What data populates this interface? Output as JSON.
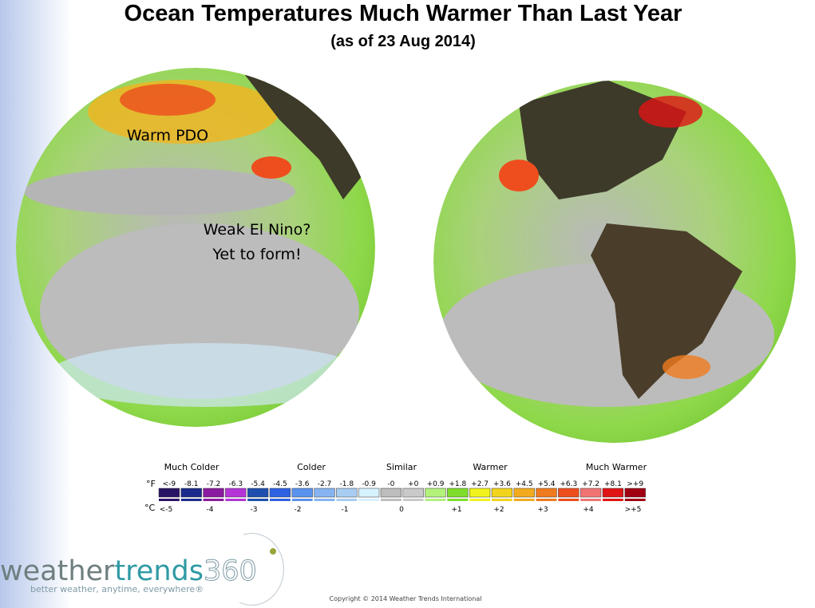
{
  "header": {
    "title": "Ocean Temperatures Much Warmer Than Last Year",
    "subtitle": "(as of 23 Aug 2014)"
  },
  "annotations": [
    "Warm PDO",
    "Weak El Nino?",
    "Yet to form!"
  ],
  "legend": {
    "categories": [
      "Much Colder",
      "Colder",
      "Similar",
      "Warmer",
      "Much Warmer"
    ],
    "f_unit": "°F",
    "c_unit": "°C",
    "f_labels": [
      "<-9",
      "-8.1",
      "-7.2",
      "-6.3",
      "-5.4",
      "-4.5",
      "-3.6",
      "-2.7",
      "-1.8",
      "-0.9",
      "-0",
      "+0",
      "+0.9",
      "+1.8",
      "+2.7",
      "+3.6",
      "+4.5",
      "+5.4",
      "+6.3",
      "+7.2",
      "+8.1",
      ">+9"
    ],
    "colors": [
      "#2a1466",
      "#1a2a8c",
      "#8a1aa0",
      "#b434d6",
      "#1f4fae",
      "#2f62e2",
      "#5a93ee",
      "#86b4f0",
      "#a9cdf2",
      "#d6f2ff",
      "#bdbdbd",
      "#c9c9c9",
      "#b2f27a",
      "#7fdc2c",
      "#f2f21e",
      "#f2d41e",
      "#f2aa1e",
      "#f07a1e",
      "#ee4e1e",
      "#f07474",
      "#e01414",
      "#a00012"
    ],
    "c_labels": [
      "<-5",
      "-4",
      "-3",
      "-2",
      "-1",
      "0",
      "+1",
      "+2",
      "+3",
      "+4",
      ">+5"
    ]
  },
  "logo": {
    "parts": [
      "weather",
      "trends",
      "360"
    ],
    "tagline": "better weather, anytime, everywhere®"
  },
  "copyright": "Copyright © 2014 Weather Trends International"
}
